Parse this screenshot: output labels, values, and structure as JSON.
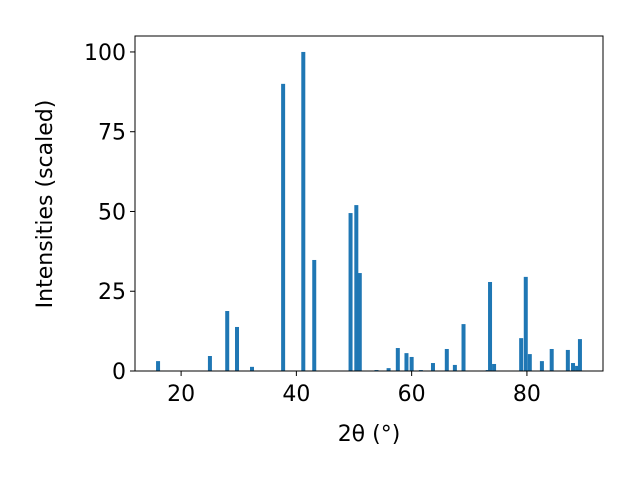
{
  "chart_data": {
    "type": "bar",
    "xlabel": "2θ (°)",
    "ylabel": "Intensities (scaled)",
    "x": [
      16.0,
      25.0,
      28.0,
      29.7,
      32.3,
      37.7,
      41.2,
      43.1,
      49.4,
      50.4,
      51.0,
      53.9,
      56.0,
      57.6,
      59.1,
      60.0,
      61.6,
      63.7,
      66.1,
      67.5,
      69.0,
      73.2,
      73.6,
      74.3,
      79.0,
      79.8,
      80.5,
      82.6,
      84.3,
      87.1,
      88.0,
      88.7,
      89.2
    ],
    "values": [
      3.1,
      4.7,
      18.8,
      13.8,
      1.3,
      90,
      100,
      34.8,
      49.5,
      52,
      30.7,
      0.3,
      0.9,
      7.2,
      5.6,
      4.4,
      0.3,
      2.5,
      6.9,
      1.9,
      14.7,
      0.3,
      27.9,
      2.2,
      10.3,
      29.5,
      5.3,
      3.1,
      6.9,
      6.6,
      2.5,
      1.6,
      10.0
    ],
    "color": "#1f77b4",
    "xlim": [
      12.0,
      93.2
    ],
    "xticks": [
      20,
      40,
      60,
      80
    ],
    "ylim": [
      0,
      105
    ],
    "yticks": [
      0,
      25,
      50,
      75,
      100
    ],
    "grid": false
  }
}
